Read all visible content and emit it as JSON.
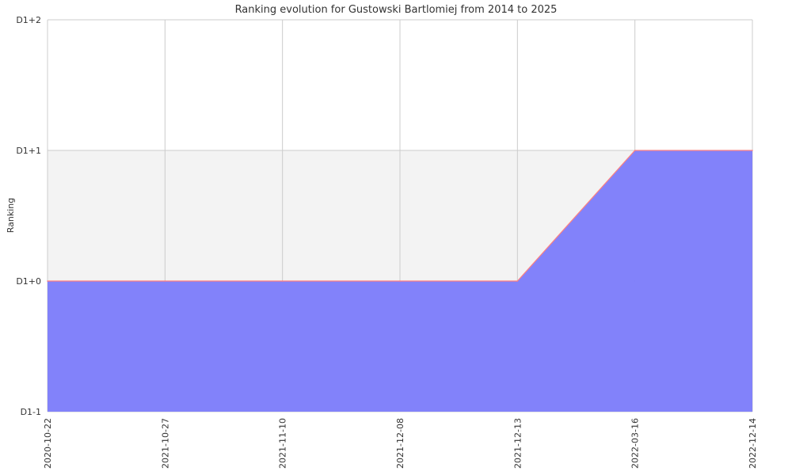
{
  "chart_data": {
    "type": "area",
    "title": "Ranking evolution for Gustowski Bartlomiej from 2014 to 2025",
    "xlabel": "",
    "ylabel": "Ranking",
    "categories": [
      "2020-10-22",
      "2021-10-27",
      "2021-11-10",
      "2021-12-08",
      "2021-12-13",
      "2022-03-16",
      "2022-12-14"
    ],
    "y_ticks": [
      {
        "value": -1,
        "label": "D1-1"
      },
      {
        "value": 0,
        "label": "D1+0"
      },
      {
        "value": 1,
        "label": "D1+1"
      },
      {
        "value": 2,
        "label": "D1+2"
      }
    ],
    "ylim": [
      -1,
      2
    ],
    "series": [
      {
        "values": [
          0,
          0,
          0,
          0,
          0,
          1,
          1
        ]
      }
    ],
    "grid": true,
    "colors": {
      "fill": "#7f7ffa",
      "line": "#ff8080",
      "band": "#f3f3f3",
      "grid": "#cccccc"
    }
  }
}
